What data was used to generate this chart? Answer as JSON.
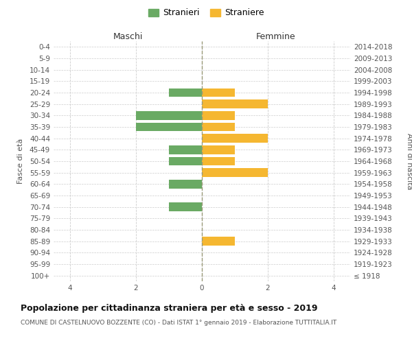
{
  "age_groups": [
    "100+",
    "95-99",
    "90-94",
    "85-89",
    "80-84",
    "75-79",
    "70-74",
    "65-69",
    "60-64",
    "55-59",
    "50-54",
    "45-49",
    "40-44",
    "35-39",
    "30-34",
    "25-29",
    "20-24",
    "15-19",
    "10-14",
    "5-9",
    "0-4"
  ],
  "birth_years": [
    "≤ 1918",
    "1919-1923",
    "1924-1928",
    "1929-1933",
    "1934-1938",
    "1939-1943",
    "1944-1948",
    "1949-1953",
    "1954-1958",
    "1959-1963",
    "1964-1968",
    "1969-1973",
    "1974-1978",
    "1979-1983",
    "1984-1988",
    "1989-1993",
    "1994-1998",
    "1999-2003",
    "2004-2008",
    "2009-2013",
    "2014-2018"
  ],
  "maschi_stranieri": [
    0,
    0,
    0,
    0,
    0,
    0,
    1,
    0,
    1,
    0,
    1,
    1,
    0,
    2,
    2,
    0,
    1,
    0,
    0,
    0,
    0
  ],
  "femmine_straniere": [
    0,
    0,
    0,
    1,
    0,
    0,
    0,
    0,
    0,
    2,
    1,
    1,
    2,
    1,
    1,
    2,
    1,
    0,
    0,
    0,
    0
  ],
  "color_maschi": "#6aaa64",
  "color_femmine": "#f5b731",
  "background_color": "#ffffff",
  "grid_color": "#cccccc",
  "title": "Popolazione per cittadinanza straniera per età e sesso - 2019",
  "subtitle": "COMUNE DI CASTELNUOVO BOZZENTE (CO) - Dati ISTAT 1° gennaio 2019 - Elaborazione TUTTITALIA.IT",
  "ylabel_left": "Fasce di età",
  "ylabel_right": "Anni di nascita",
  "xlabel_maschi": "Maschi",
  "xlabel_femmine": "Femmine",
  "legend_maschi": "Stranieri",
  "legend_femmine": "Straniere",
  "xlim": 4.5,
  "title_fontsize": 9,
  "subtitle_fontsize": 6.5,
  "axis_label_fontsize": 8,
  "tick_fontsize": 7.5,
  "legend_fontsize": 9
}
